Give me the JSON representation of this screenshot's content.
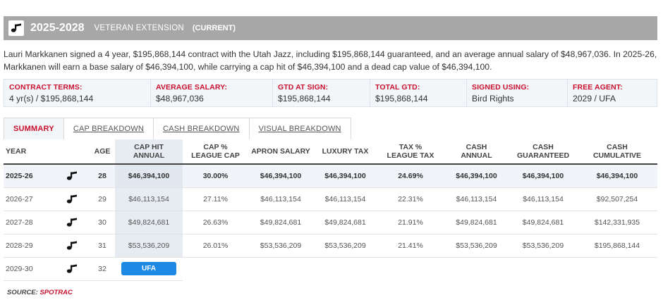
{
  "header": {
    "years": "2025-2028",
    "type": "VETERAN EXTENSION",
    "status": "(CURRENT)",
    "logo_icon": "jazz-note-icon"
  },
  "summary": "Lauri Markkanen signed a 4 year, $195,868,144 contract with the Utah Jazz, including $195,868,144 guaranteed, and an average annual salary of $48,967,036. In 2025-26, Markkanen will earn a base salary of $46,394,100, while carrying a cap hit of $46,394,100 and a dead cap value of $46,394,100.",
  "terms": [
    {
      "label": "CONTRACT TERMS:",
      "value": "4 yr(s) / $195,868,144"
    },
    {
      "label": "AVERAGE SALARY:",
      "value": "$48,967,036"
    },
    {
      "label": "GTD AT SIGN:",
      "value": "$195,868,144"
    },
    {
      "label": "TOTAL GTD:",
      "value": "$195,868,144"
    },
    {
      "label": "SIGNED USING:",
      "value": "Bird Rights"
    },
    {
      "label": "FREE AGENT:",
      "value": "2029 / UFA"
    }
  ],
  "tabs": [
    "SUMMARY",
    "CAP BREAKDOWN",
    "CASH BREAKDOWN",
    "VISUAL BREAKDOWN"
  ],
  "columns": {
    "year": "YEAR",
    "age": "AGE",
    "cap_hit_1": "CAP HIT",
    "cap_hit_2": "ANNUAL",
    "cap_pct_1": "CAP %",
    "cap_pct_2": "LEAGUE CAP",
    "apron": "APRON SALARY",
    "luxury": "LUXURY TAX",
    "tax_pct_1": "TAX %",
    "tax_pct_2": "LEAGUE TAX",
    "cash_annual_1": "CASH",
    "cash_annual_2": "ANNUAL",
    "cash_gtd_1": "CASH",
    "cash_gtd_2": "GUARANTEED",
    "cash_cum_1": "CASH",
    "cash_cum_2": "CUMULATIVE"
  },
  "rows": [
    {
      "year": "2025-26",
      "age": "28",
      "cap_hit": "$46,394,100",
      "cap_pct": "30.00%",
      "apron": "$46,394,100",
      "luxury": "$46,394,100",
      "tax_pct": "24.69%",
      "cash_annual": "$46,394,100",
      "cash_gtd": "$46,394,100",
      "cash_cum": "$46,394,100"
    },
    {
      "year": "2026-27",
      "age": "29",
      "cap_hit": "$46,113,154",
      "cap_pct": "27.11%",
      "apron": "$46,113,154",
      "luxury": "$46,113,154",
      "tax_pct": "22.31%",
      "cash_annual": "$46,113,154",
      "cash_gtd": "$46,113,154",
      "cash_cum": "$92,507,254"
    },
    {
      "year": "2027-28",
      "age": "30",
      "cap_hit": "$49,824,681",
      "cap_pct": "26.63%",
      "apron": "$49,824,681",
      "luxury": "$49,824,681",
      "tax_pct": "21.91%",
      "cash_annual": "$49,824,681",
      "cash_gtd": "$49,824,681",
      "cash_cum": "$142,331,935"
    },
    {
      "year": "2028-29",
      "age": "31",
      "cap_hit": "$53,536,209",
      "cap_pct": "26.01%",
      "apron": "$53,536,209",
      "luxury": "$53,536,209",
      "tax_pct": "21.41%",
      "cash_annual": "$53,536,209",
      "cash_gtd": "$53,536,209",
      "cash_cum": "$195,868,144"
    },
    {
      "year": "2029-30",
      "age": "32",
      "fa_badge": "UFA"
    }
  ],
  "source": {
    "label": "SOURCE:",
    "name": "SPOTRAC"
  }
}
